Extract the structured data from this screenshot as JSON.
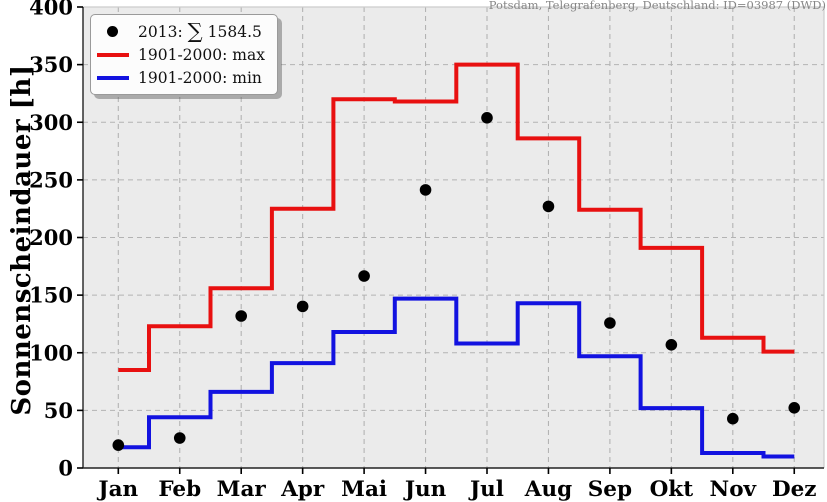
{
  "header": {
    "station_label": "Potsdam, Telegrafenberg, Deutschland: ID=03987 (DWD)"
  },
  "legend": {
    "year_label": "2013:",
    "sum_symbol": "∑",
    "sum_value": "1584.5",
    "max_label": "1901-2000: max",
    "min_label": "1901-2000: min"
  },
  "colors": {
    "max_line": "#e81010",
    "min_line": "#1212e0",
    "dots": "#000000",
    "plot_bg": "#ebebeb",
    "grid": "#b3b3b3",
    "axis_dark": "#222222",
    "axis_light": "#cccccc",
    "title_text": "#878787"
  },
  "chart_data": {
    "type": "line",
    "title": "Potsdam, Telegrafenberg, Deutschland: ID=03987 (DWD)",
    "ylabel": "Sonnenscheindauer [h]",
    "xlabel": "",
    "ylim": [
      0,
      400
    ],
    "yticks": [
      0,
      50,
      100,
      150,
      200,
      250,
      300,
      350,
      400
    ],
    "grid": true,
    "legend_position": "upper-left",
    "categories": [
      "Jan",
      "Feb",
      "Mar",
      "Apr",
      "Mai",
      "Jun",
      "Jul",
      "Aug",
      "Sep",
      "Okt",
      "Nov",
      "Dez"
    ],
    "series": [
      {
        "name": "2013",
        "style": "scatter",
        "color": "#000000",
        "sum": 1584.5,
        "values": [
          19.9,
          26.0,
          131.9,
          140.2,
          166.6,
          241.3,
          303.9,
          227.0,
          125.8,
          106.9,
          42.8,
          52.2
        ]
      },
      {
        "name": "1901-2000: max",
        "style": "step-mid",
        "color": "#e81010",
        "values": [
          85,
          123,
          156,
          225,
          320,
          318,
          350,
          286,
          224,
          191,
          113,
          101
        ]
      },
      {
        "name": "1901-2000: min",
        "style": "step-mid",
        "color": "#1212e0",
        "values": [
          18,
          44,
          66,
          91,
          118,
          147,
          108,
          143,
          97,
          52,
          13,
          10
        ]
      }
    ]
  }
}
